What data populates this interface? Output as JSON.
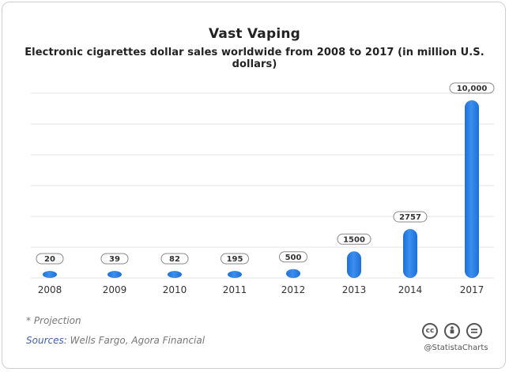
{
  "chart_data": {
    "type": "bar",
    "title": "Vast Vaping",
    "subtitle": "Electronic cigarettes dollar sales worldwide from 2008 to 2017 (in million U.S. dollars)",
    "categories": [
      "2008",
      "2009",
      "2010",
      "2011",
      "2012",
      "2013",
      "2014",
      "2017"
    ],
    "values": [
      20,
      39,
      82,
      195,
      500,
      1500,
      2757,
      10000
    ],
    "value_labels": [
      "20",
      "39",
      "82",
      "195",
      "500",
      "1500",
      "2757",
      "10,000"
    ],
    "xlabel": "",
    "ylabel": "",
    "grid": true,
    "bar_color": "#2a7be0"
  },
  "footer": {
    "note": "* Projection",
    "sources_label": "Sources:",
    "sources_text": "Wells Fargo, Agora Financial",
    "license_icons": [
      "cc-icon",
      "person-icon",
      "equals-icon"
    ],
    "brand": "@StatistaCharts"
  }
}
